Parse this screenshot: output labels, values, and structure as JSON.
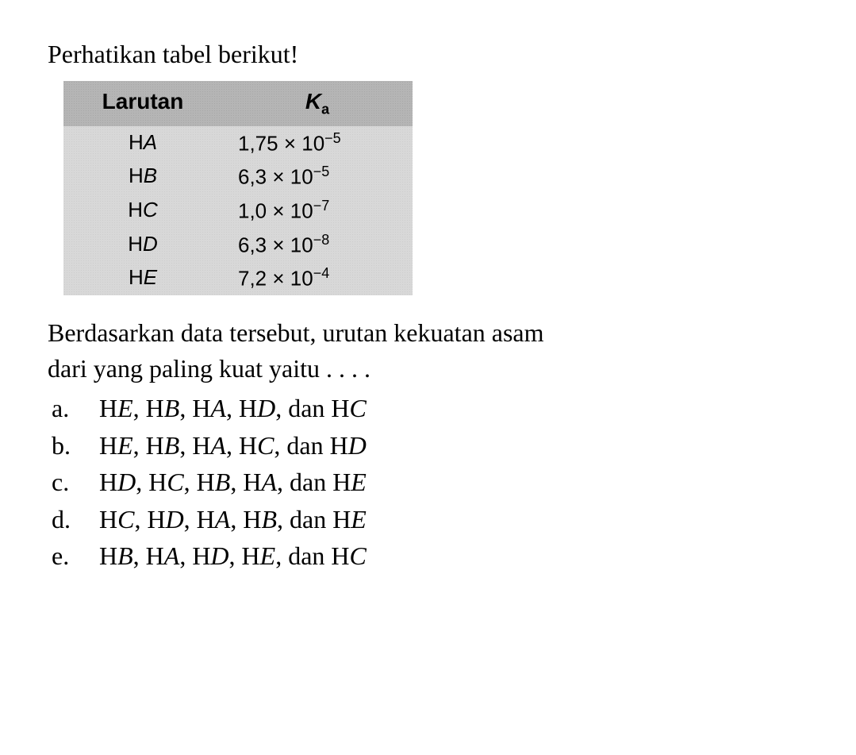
{
  "title": "Perhatikan tabel berikut!",
  "table": {
    "header_larutan": "Larutan",
    "header_ka_base": "K",
    "header_ka_sub": "a",
    "rows": [
      {
        "prefix": "H",
        "var": "A",
        "value": "1,75 × 10",
        "exp": "−5"
      },
      {
        "prefix": "H",
        "var": "B",
        "value": "6,3 × 10",
        "exp": "−5"
      },
      {
        "prefix": "H",
        "var": "C",
        "value": "1,0 × 10",
        "exp": "−7"
      },
      {
        "prefix": "H",
        "var": "D",
        "value": "6,3 × 10",
        "exp": "−8"
      },
      {
        "prefix": "H",
        "var": "E",
        "value": "7,2 × 10",
        "exp": "−4"
      }
    ]
  },
  "question_line1": "Berdasarkan data tersebut, urutan kekuatan asam",
  "question_line2": "dari yang paling kuat yaitu . . . .",
  "options": [
    {
      "letter": "a.",
      "seq": [
        "E",
        "B",
        "A",
        "D",
        "C"
      ]
    },
    {
      "letter": "b.",
      "seq": [
        "E",
        "B",
        "A",
        "C",
        "D"
      ]
    },
    {
      "letter": "c.",
      "seq": [
        "D",
        "C",
        "B",
        "A",
        "E"
      ]
    },
    {
      "letter": "d.",
      "seq": [
        "C",
        "D",
        "A",
        "B",
        "E"
      ]
    },
    {
      "letter": "e.",
      "seq": [
        "B",
        "A",
        "D",
        "E",
        "C"
      ]
    }
  ],
  "sep": ", ",
  "last_sep": ", dan ",
  "h_prefix": "H"
}
